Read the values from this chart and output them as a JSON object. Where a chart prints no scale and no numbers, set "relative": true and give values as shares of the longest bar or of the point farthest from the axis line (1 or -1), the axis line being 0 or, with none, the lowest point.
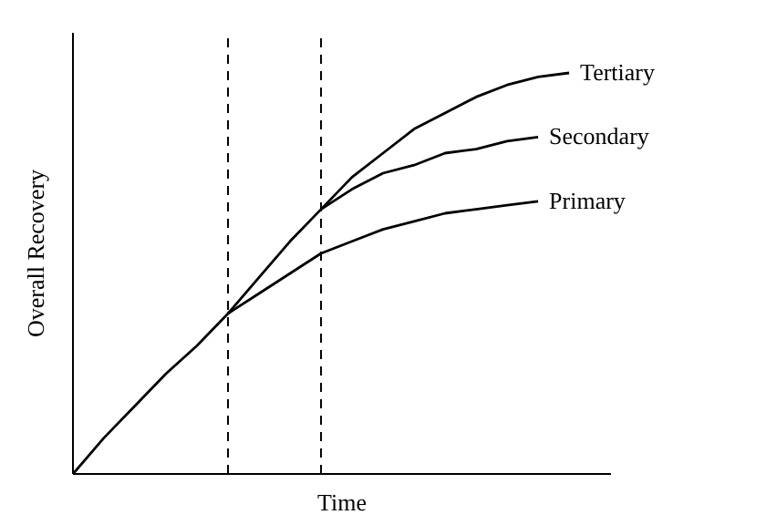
{
  "chart_data": {
    "type": "line",
    "relative": true,
    "xlabel": "Time",
    "ylabel": "Overall Recovery",
    "categories": [
      null,
      null,
      null,
      null,
      null,
      null,
      null,
      null,
      null,
      null,
      null,
      null,
      null,
      null,
      null,
      null,
      null
    ],
    "series": [
      {
        "name": "Primary",
        "color": "#000000",
        "values": [
          0,
          0.09,
          0.17,
          0.25,
          0.32,
          0.4,
          0.45,
          0.5,
          0.55,
          0.58,
          0.61,
          0.63,
          0.65,
          0.66,
          0.67,
          0.68,
          null
        ]
      },
      {
        "name": "Secondary",
        "color": "#000000",
        "values": [
          null,
          null,
          null,
          null,
          null,
          0.4,
          0.49,
          0.58,
          0.66,
          0.71,
          0.75,
          0.77,
          0.8,
          0.81,
          0.83,
          0.84,
          null
        ]
      },
      {
        "name": "Tertiary",
        "color": "#000000",
        "values": [
          null,
          null,
          null,
          null,
          null,
          null,
          null,
          null,
          0.66,
          0.74,
          0.8,
          0.86,
          0.9,
          0.94,
          0.97,
          0.99,
          1
        ]
      }
    ]
  }
}
